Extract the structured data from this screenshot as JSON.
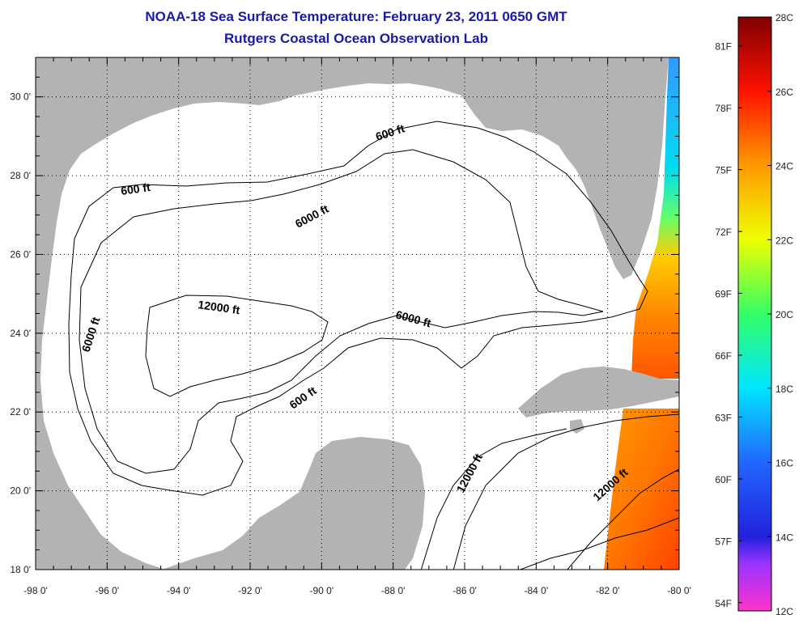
{
  "title": {
    "line1": "NOAA-18 Sea Surface Temperature:  February 23, 2011 0650 GMT",
    "line2": "Rutgers Coastal Ocean Observation Lab"
  },
  "map": {
    "x_ticks": [
      "-98 0'",
      "-96 0'",
      "-94 0'",
      "-92 0'",
      "-90 0'",
      "-88 0'",
      "-86 0'",
      "-84 0'",
      "-82 0'",
      "-80 0'"
    ],
    "y_ticks": [
      "18 0'",
      "20 0'",
      "22 0'",
      "24 0'",
      "26 0'",
      "28 0'",
      "30 0'"
    ],
    "lon_range": [
      -98,
      -80
    ],
    "lat_range": [
      18,
      31
    ],
    "contour_labels": [
      "600 ft",
      "6000 ft",
      "600 ft",
      "12000 ft",
      "6000 ft",
      "6000 ft",
      "600 ft",
      "12000 ft",
      "12000 ft"
    ],
    "land_color": "#b3b3b3",
    "no_data_color": "#ffffff"
  },
  "colorbar": {
    "c_labels": [
      "28C",
      "26C",
      "24C",
      "22C",
      "20C",
      "18C",
      "16C",
      "14C",
      "12C"
    ],
    "f_labels": [
      "81F",
      "78F",
      "75F",
      "72F",
      "69F",
      "66F",
      "63F",
      "60F",
      "57F",
      "54F"
    ],
    "range_c": [
      12,
      28
    ]
  }
}
